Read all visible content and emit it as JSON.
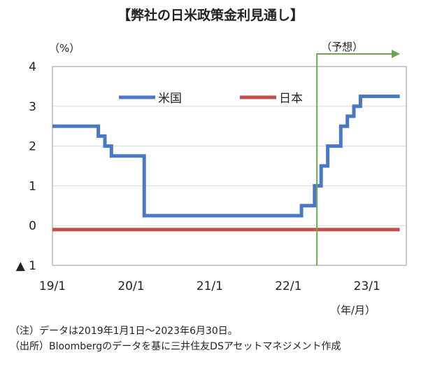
{
  "chart_data": {
    "type": "line",
    "title": "【弊社の日米政策金利見通し】",
    "y_unit_label": "（%）",
    "forecast_label": "（予想）",
    "x_unit_label": "（年/月）",
    "ylim": [
      -1,
      4
    ],
    "y_ticks": [
      {
        "value": 4,
        "label": "4"
      },
      {
        "value": 3,
        "label": "3"
      },
      {
        "value": 2,
        "label": "2"
      },
      {
        "value": 1,
        "label": "1"
      },
      {
        "value": 0,
        "label": "0"
      },
      {
        "value": -1,
        "label": "▲ 1"
      }
    ],
    "x_ticks": [
      {
        "value": "2019-01",
        "label": "19/1"
      },
      {
        "value": "2020-01",
        "label": "20/1"
      },
      {
        "value": "2021-01",
        "label": "21/1"
      },
      {
        "value": "2022-01",
        "label": "22/1"
      },
      {
        "value": "2023-01",
        "label": "23/1"
      }
    ],
    "xlim": [
      "2019-01-01",
      "2023-06-30"
    ],
    "forecast_start": "2022-06",
    "grid": true,
    "legend_placement": "top-center",
    "series": [
      {
        "name": "米国",
        "color": "#4a78c2",
        "points": [
          [
            "2019-01",
            2.5
          ],
          [
            "2019-08",
            2.5
          ],
          [
            "2019-08",
            2.25
          ],
          [
            "2019-09",
            2.25
          ],
          [
            "2019-09",
            2.0
          ],
          [
            "2019-10",
            2.0
          ],
          [
            "2019-10",
            1.75
          ],
          [
            "2020-03",
            1.75
          ],
          [
            "2020-03",
            1.25
          ],
          [
            "2020-03",
            0.25
          ],
          [
            "2022-03",
            0.25
          ],
          [
            "2022-03",
            0.5
          ],
          [
            "2022-05",
            0.5
          ],
          [
            "2022-05",
            1.0
          ],
          [
            "2022-06",
            1.0
          ],
          [
            "2022-06",
            1.5
          ],
          [
            "2022-07",
            1.5
          ],
          [
            "2022-07",
            2.0
          ],
          [
            "2022-09",
            2.0
          ],
          [
            "2022-09",
            2.5
          ],
          [
            "2022-10",
            2.5
          ],
          [
            "2022-10",
            2.75
          ],
          [
            "2022-11",
            2.75
          ],
          [
            "2022-11",
            3.0
          ],
          [
            "2022-12",
            3.0
          ],
          [
            "2022-12",
            3.25
          ],
          [
            "2023-06",
            3.25
          ]
        ]
      },
      {
        "name": "日本",
        "color": "#c0504d",
        "points": [
          [
            "2019-01",
            -0.1
          ],
          [
            "2023-06",
            -0.1
          ]
        ]
      }
    ],
    "notes": [
      "（注）データは2019年1月1日～2023年6月30日。",
      "（出所）Bloombergのデータを基に三井住友DSアセットマネジメント作成"
    ]
  },
  "colors": {
    "frame": "#a6a6a6",
    "grid": "#d9d9d9",
    "forecast_arrow": "#6aa84f"
  }
}
